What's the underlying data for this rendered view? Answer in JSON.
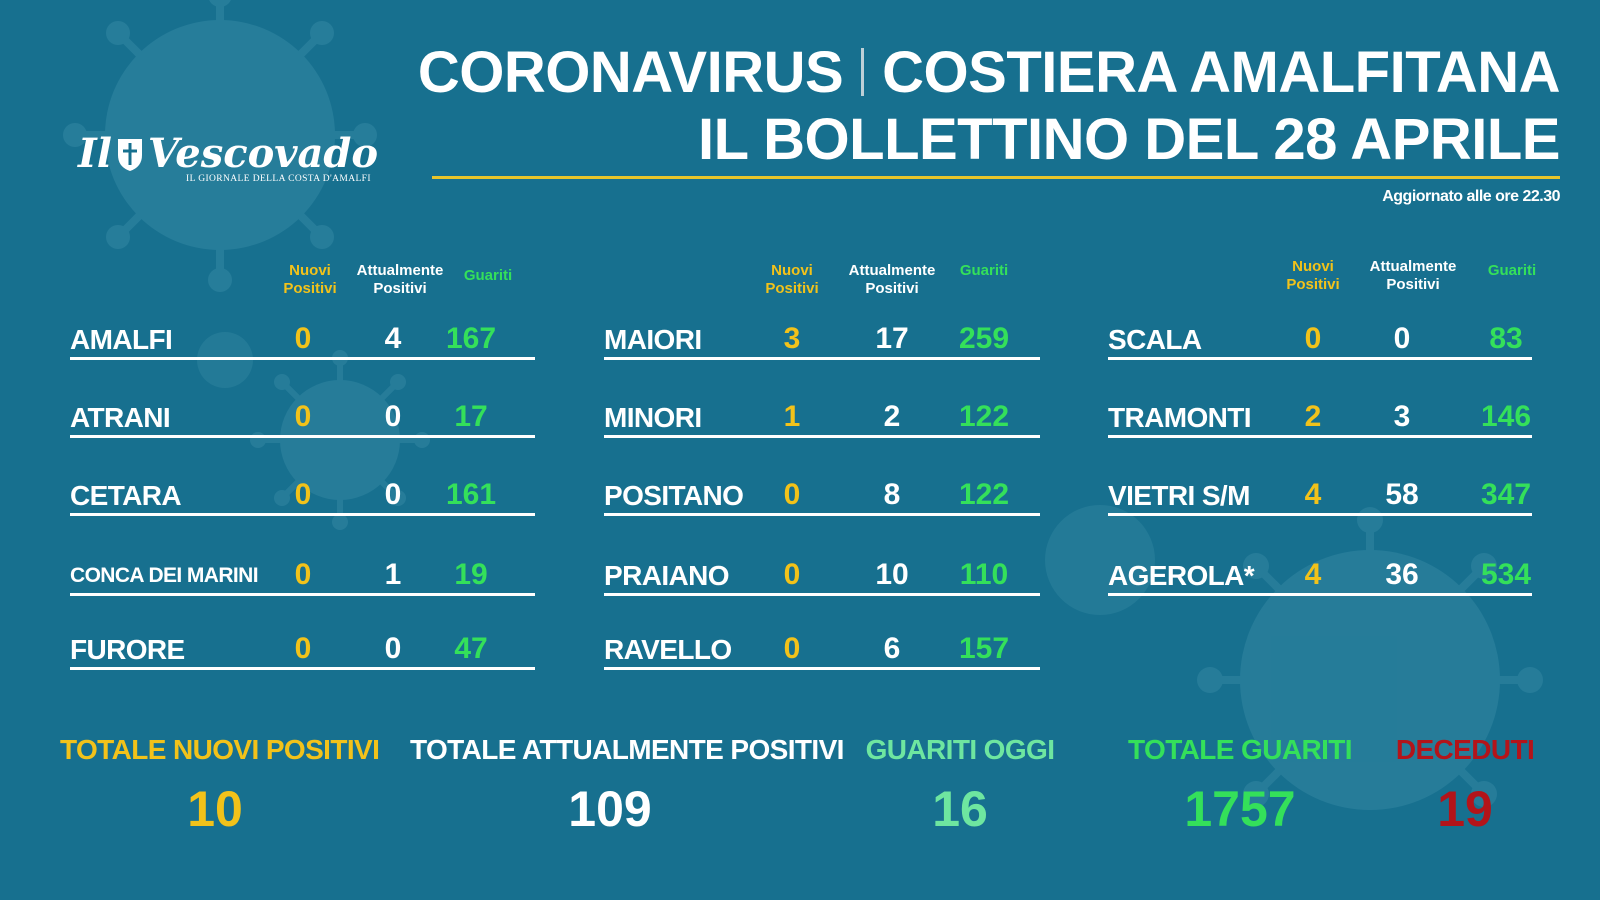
{
  "header": {
    "title_left": "CORONAVIRUS",
    "title_right": "COSTIERA AMALFITANA",
    "subtitle": "IL BOLLETTINO DEL 28 APRILE",
    "updated": "Aggiornato alle ore 22.30"
  },
  "logo": {
    "name": "Il Vescovado",
    "tagline": "IL GIORNALE DELLA COSTA D'AMALFI"
  },
  "columns_header": {
    "nuovi_line1": "Nuovi",
    "nuovi_line2": "Positivi",
    "att_line1": "Attualmente",
    "att_line2": "Positivi",
    "guariti": "Guariti"
  },
  "columns": [
    {
      "rows": [
        {
          "name": "AMALFI",
          "nuovi": "0",
          "attualmente": "4",
          "guariti": "167"
        },
        {
          "name": "ATRANI",
          "nuovi": "0",
          "attualmente": "0",
          "guariti": "17"
        },
        {
          "name": "CETARA",
          "nuovi": "0",
          "attualmente": "0",
          "guariti": "161"
        },
        {
          "name": "CONCA DEI MARINI",
          "nuovi": "0",
          "attualmente": "1",
          "guariti": "19"
        },
        {
          "name": "FURORE",
          "nuovi": "0",
          "attualmente": "0",
          "guariti": "47"
        }
      ]
    },
    {
      "rows": [
        {
          "name": "MAIORI",
          "nuovi": "3",
          "attualmente": "17",
          "guariti": "259"
        },
        {
          "name": "MINORI",
          "nuovi": "1",
          "attualmente": "2",
          "guariti": "122"
        },
        {
          "name": "POSITANO",
          "nuovi": "0",
          "attualmente": "8",
          "guariti": "122"
        },
        {
          "name": "PRAIANO",
          "nuovi": "0",
          "attualmente": "10",
          "guariti": "110"
        },
        {
          "name": "RAVELLO",
          "nuovi": "0",
          "attualmente": "6",
          "guariti": "157"
        }
      ]
    },
    {
      "rows": [
        {
          "name": "SCALA",
          "nuovi": "0",
          "attualmente": "0",
          "guariti": "83"
        },
        {
          "name": "TRAMONTI",
          "nuovi": "2",
          "attualmente": "3",
          "guariti": "146"
        },
        {
          "name": "VIETRI S/M",
          "nuovi": "4",
          "attualmente": "58",
          "guariti": "347"
        },
        {
          "name": "AGEROLA*",
          "nuovi": "4",
          "attualmente": "36",
          "guariti": "534"
        }
      ]
    }
  ],
  "totals": {
    "nuovi_label": "TOTALE NUOVI POSITIVI",
    "nuovi_value": "10",
    "att_label": "TOTALE ATTUALMENTE POSITIVI",
    "att_value": "109",
    "guariti_oggi_label": "GUARITI OGGI",
    "guariti_oggi_value": "16",
    "tot_guariti_label": "TOTALE GUARITI",
    "tot_guariti_value": "1757",
    "deceduti_label": "DECEDUTI",
    "deceduti_value": "19"
  },
  "colors": {
    "background": "#17708f",
    "yellow": "#f2c21a",
    "green": "#34e05a",
    "light_green": "#6ee6a0",
    "red": "#b3141a",
    "rule_yellow": "#e8c52a"
  }
}
